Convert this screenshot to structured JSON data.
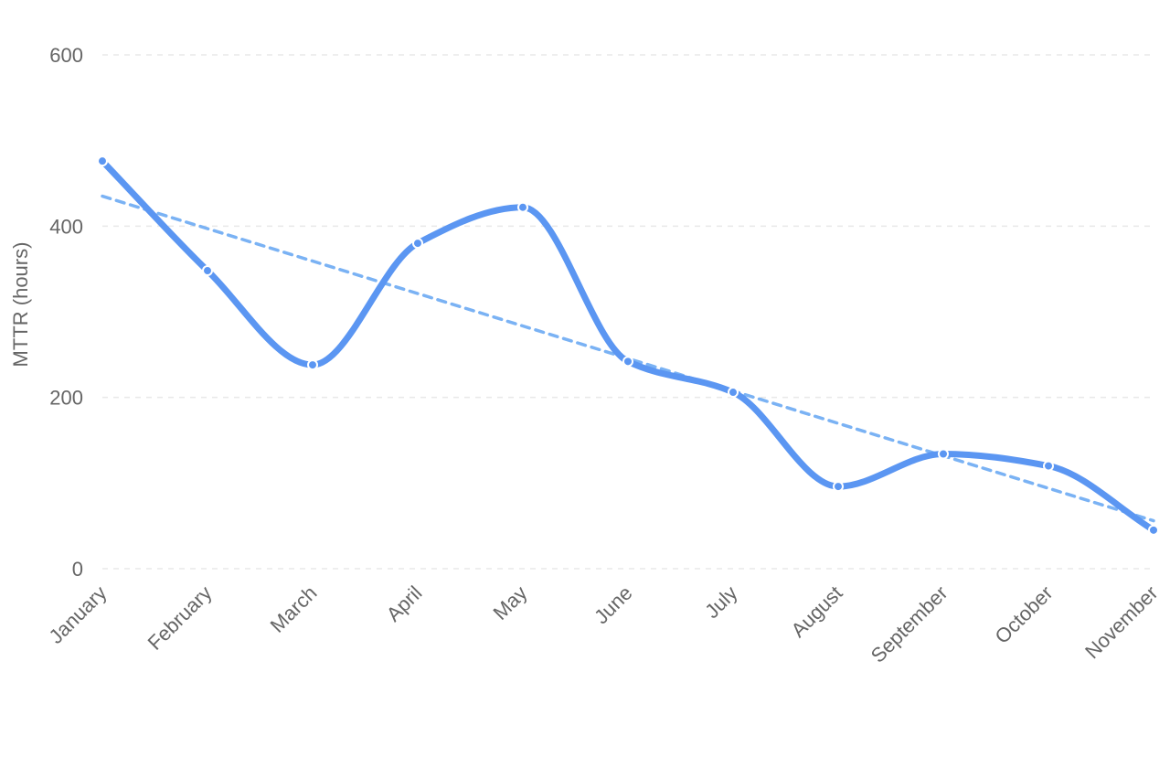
{
  "chart_data": {
    "type": "line",
    "title": "",
    "xlabel": "",
    "ylabel": "MTTR (hours)",
    "ylim": [
      0,
      600
    ],
    "yticks": [
      0,
      200,
      400,
      600
    ],
    "grid": true,
    "legend": "none",
    "curve": "smooth",
    "categories": [
      "January",
      "February",
      "March",
      "April",
      "May",
      "June",
      "July",
      "August",
      "September",
      "October",
      "November"
    ],
    "series": [
      {
        "values": [
          476,
          348,
          238,
          380,
          422,
          242,
          206,
          96,
          134,
          120,
          45
        ],
        "color": "#5b96f2"
      }
    ],
    "trendline": {
      "start": 435,
      "end": 56,
      "color": "#7ab2f4",
      "style": "dashed"
    }
  }
}
